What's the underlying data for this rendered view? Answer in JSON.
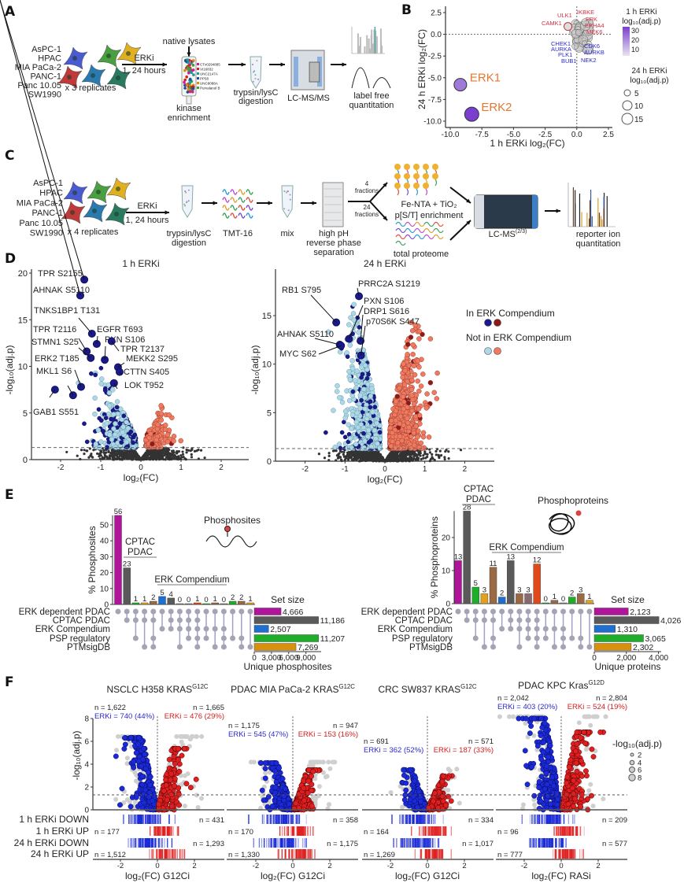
{
  "panels": [
    "A",
    "B",
    "C",
    "D",
    "E",
    "F"
  ],
  "panel_a": {
    "cell_lines": [
      "AsPC-1",
      "HPAC",
      "MIA PaCa-2",
      "PANC-1",
      "Panc 10.05",
      "SW1990"
    ],
    "replicates": "x 3 replicates",
    "treatment": "ERKi",
    "timepoints": "1, 24 hours",
    "native_lysates": "native lysates",
    "beads": [
      "CTx0294885",
      "VI16832",
      "UNC2147A",
      "PP58",
      "UNC8088A",
      "Purvalanol B"
    ],
    "bead_colors": [
      "#d0208f",
      "#d02020",
      "#1a9a9a",
      "#1a4aa0",
      "#e08a10",
      "#3aa03a"
    ],
    "enrichment": [
      "kinase",
      "enrichment"
    ],
    "digestion": [
      "trypsin/lysC",
      "digestion"
    ],
    "instrument": "LC-MS/MS",
    "quant": [
      "label free",
      "quantitation"
    ]
  },
  "panel_c": {
    "cell_lines": [
      "AsPC-1",
      "HPAC",
      "MIA PaCa-2",
      "PANC-1",
      "Panc 10.05",
      "SW1990"
    ],
    "replicates": "x 4 replicates",
    "treatment": "ERKi",
    "timepoints": "1, 24 hours",
    "digestion": [
      "trypsin/lysC",
      "digestion"
    ],
    "label": "TMT-16",
    "mix": "mix",
    "separation": [
      "high pH",
      "reverse phase",
      "separation"
    ],
    "fractions_a": [
      "4",
      "fractions"
    ],
    "fractions_b": [
      "24",
      "fractions"
    ],
    "enrichment": [
      "Fe-NTA + TiO₂",
      "p[S/T] enrichment"
    ],
    "total": "total proteome",
    "instrument": "LC-MS",
    "instrument_sup": "(2/3)",
    "quant": [
      "reporter ion",
      "quantitation"
    ]
  },
  "chart_data": [
    {
      "panel": "B",
      "type": "scatter",
      "xlabel": "1 h ERKi log₂(FC)",
      "ylabel": "24 h ERKi log₂(FC)",
      "xlim": [
        -10,
        2.5
      ],
      "ylim": [
        -10,
        2.5
      ],
      "xticks": [
        "-10.0",
        "-7.5",
        "-5.0",
        "-2.5",
        "0.0",
        "2.5"
      ],
      "yticks": [
        "2.5",
        "0.0",
        "-2.5",
        "-5.0",
        "-7.5",
        "-10.0"
      ],
      "points": [
        {
          "label": "ERK1",
          "x": -9.2,
          "y": -5.8
        },
        {
          "label": "ERK2",
          "x": -8.3,
          "y": -9.2
        }
      ],
      "labels_up": [
        "ULK1",
        "IKBKE",
        "FRK",
        "EPHA4",
        "CAMK1",
        "MEK6"
      ],
      "labels_down": [
        "CHEK1",
        "AURKA",
        "PLK1",
        "BUB1",
        "CDK6",
        "AURKB",
        "NEK2"
      ],
      "color_legend": {
        "title": [
          "1 h ERKi",
          "log₁₀(adj.p)"
        ],
        "ticks": [
          "30",
          "20",
          "10"
        ]
      },
      "size_legend": {
        "title": [
          "24 h ERKi",
          "log₁₀(adj.p)"
        ],
        "values": [
          "5",
          "10",
          "15"
        ]
      },
      "colors": {
        "label_highlight": "#e8772e",
        "up": "#d03040",
        "down": "#2a2ad0",
        "scale_high": "#7b3fcf",
        "scale_low": "#e0dce8"
      }
    },
    {
      "panel": "D",
      "type": "scatter",
      "title": "1 h ERKi",
      "xlabel": "log₂(FC)",
      "ylabel": "-log₁₀(adj.p)",
      "xlim": [
        -2.7,
        2.7
      ],
      "ylim": [
        0,
        20
      ],
      "xticks": [
        "-2",
        "-1",
        "0",
        "1",
        "2"
      ],
      "yticks": [
        "0",
        "5",
        "10",
        "15",
        "20"
      ],
      "threshold": 1.3,
      "labeled_points": [
        {
          "label": "TPR S2155",
          "x": -1.41,
          "y": 19.3
        },
        {
          "label": "AHNAK S5110",
          "x": -1.51,
          "y": 17.6
        },
        {
          "label": "TNKS1BP1 T131",
          "x": -1.22,
          "y": 13.5
        },
        {
          "label": "EGFR T693",
          "x": -1.1,
          "y": 12.4
        },
        {
          "label": "PXN S106",
          "x": -0.9,
          "y": 10.7
        },
        {
          "label": "TPR T2137",
          "x": -0.73,
          "y": 12.7
        },
        {
          "label": "TPR T2116",
          "x": -1.35,
          "y": 11.6
        },
        {
          "label": "STMN1 S25",
          "x": -1.25,
          "y": 10.9
        },
        {
          "label": "MEKK2 S295",
          "x": -0.57,
          "y": 9.9
        },
        {
          "label": "ERK2 T185",
          "x": -1.49,
          "y": 7.8
        },
        {
          "label": "CTTN S405",
          "x": -0.53,
          "y": 9.4
        },
        {
          "label": "MKL1 S6",
          "x": -1.69,
          "y": 6.9
        },
        {
          "label": "LOK T952",
          "x": -0.67,
          "y": 8.2
        },
        {
          "label": "GAB1 S551",
          "x": -2.14,
          "y": 7.5
        }
      ]
    },
    {
      "panel": "D",
      "type": "scatter",
      "title": "24 h ERKi",
      "xlabel": "log₂(FC)",
      "ylabel": "-log₁₀(adj.p)",
      "xlim": [
        -2.7,
        2.7
      ],
      "ylim": [
        0,
        19
      ],
      "xticks": [
        "-2",
        "-1",
        "0",
        "1",
        "2"
      ],
      "yticks": [
        "0",
        "5",
        "10",
        "15"
      ],
      "threshold": 1.3,
      "labeled_points": [
        {
          "label": "PRRC2A S1219",
          "x": -0.65,
          "y": 17.0
        },
        {
          "label": "RB1 S795",
          "x": -1.22,
          "y": 14.3
        },
        {
          "label": "PXN S106",
          "x": -0.9,
          "y": 12.6
        },
        {
          "label": "DRP1 S616",
          "x": -0.61,
          "y": 12.4
        },
        {
          "label": "p70S6K S447",
          "x": -0.6,
          "y": 10.9
        },
        {
          "label": "AHNAK S5110",
          "x": -1.13,
          "y": 12.0
        },
        {
          "label": "MYC S62",
          "x": -1.1,
          "y": 11.9
        }
      ],
      "legend": [
        {
          "label": "In ERK Compendium",
          "colors": [
            "#1a1a8c",
            "#8b1a1a"
          ]
        },
        {
          "label": "Not in ERK Compendium",
          "colors": [
            "#add8e6",
            "#f07a60"
          ]
        }
      ]
    },
    {
      "panel": "E",
      "type": "bar",
      "subtype": "upset",
      "ylabel": "% Phosphosites",
      "icon_label": "Phosphosites",
      "yticks": [
        "0",
        "10",
        "20",
        "30",
        "40",
        "50"
      ],
      "sets": [
        "ERK dependent PDAC",
        "CPTAC PDAC",
        "ERK Compendium",
        "PSP regulatory",
        "PTMsigDB"
      ],
      "set_sizes": [
        4666,
        11186,
        2507,
        11207,
        7269
      ],
      "set_size_labels": [
        "4,666",
        "11,186",
        "2,507",
        "11,207",
        "7,269"
      ],
      "set_colors": [
        "#b0149b",
        "#5a5a5a",
        "#1f6fd0",
        "#1fae2a",
        "#d89010"
      ],
      "set_size_title": "Set size",
      "set_size_axis": "Unique phosphosites",
      "set_size_ticks": [
        {
          "v": 0,
          "t": "0"
        },
        {
          "v": 3000,
          "t": "3,000"
        },
        {
          "v": 6000,
          "t": "6,000"
        },
        {
          "v": 9000,
          "t": "9,000"
        }
      ],
      "values": [
        56,
        23,
        1,
        1,
        2,
        5,
        4,
        0,
        0,
        1,
        0,
        1,
        0,
        2,
        2,
        1
      ],
      "bar_colors": [
        "#b0149b",
        "#5a5a5a",
        "#1fae2a",
        "#e0a020",
        "#9a6a45",
        "#1f6fd0",
        "#5a5a5a",
        "#888888",
        "#888888",
        "#e04a1a",
        "#1fae2a",
        "#9a6a45",
        "#888888",
        "#1fae2a",
        "#9a6a45",
        "#e0a020"
      ],
      "membership": [
        [
          0
        ],
        [
          0,
          1
        ],
        [
          0,
          1,
          3
        ],
        [
          0,
          1,
          4
        ],
        [
          0,
          1,
          3,
          4
        ],
        [
          0,
          2
        ],
        [
          0,
          1,
          2
        ],
        [
          0,
          1,
          2,
          4
        ],
        [
          0,
          1,
          2,
          3
        ],
        [
          0,
          1,
          2,
          3,
          4
        ],
        [
          0,
          2,
          3
        ],
        [
          0,
          2,
          4
        ],
        [
          0,
          2,
          3,
          4
        ],
        [
          0,
          3
        ],
        [
          0,
          3,
          4
        ],
        [
          0,
          4
        ]
      ],
      "annotations": [
        {
          "text": [
            "CPTAC",
            "PDAC"
          ]
        },
        {
          "text": [
            "ERK Compendium"
          ]
        }
      ]
    },
    {
      "panel": "E",
      "type": "bar",
      "subtype": "upset",
      "ylabel": "% Phosphoproteins",
      "icon_label": "Phosphoproteins",
      "yticks": [
        "0",
        "10",
        "20"
      ],
      "sets": [
        "ERK dependent PDAC",
        "CPTAC PDAC",
        "ERK Compendium",
        "PSP regulatory",
        "PTMsigDB"
      ],
      "set_sizes": [
        2123,
        4026,
        1310,
        3065,
        2302
      ],
      "set_size_labels": [
        "2,123",
        "4,026",
        "1,310",
        "3,065",
        "2,302"
      ],
      "set_colors": [
        "#b0149b",
        "#5a5a5a",
        "#1f6fd0",
        "#1fae2a",
        "#d89010"
      ],
      "set_size_title": "Set size",
      "set_size_axis": "Unique proteins",
      "set_size_ticks": [
        {
          "v": 0,
          "t": "0"
        },
        {
          "v": 2000,
          "t": "2,000"
        },
        {
          "v": 4000,
          "t": "4,000"
        }
      ],
      "values": [
        13,
        28,
        5,
        3,
        11,
        2,
        13,
        3,
        3,
        12,
        0,
        1,
        0,
        2,
        3,
        1
      ],
      "bar_colors": [
        "#b0149b",
        "#5a5a5a",
        "#1fae2a",
        "#e0a020",
        "#9a6a45",
        "#1f6fd0",
        "#5a5a5a",
        "#9a6a45",
        "#8a6a70",
        "#e04a1a",
        "#1fae2a",
        "#9a6a45",
        "#888888",
        "#1fae2a",
        "#9a6a45",
        "#e0a020"
      ],
      "membership": [
        [
          0
        ],
        [
          0,
          1
        ],
        [
          0,
          1,
          3
        ],
        [
          0,
          1,
          4
        ],
        [
          0,
          1,
          3,
          4
        ],
        [
          0,
          2
        ],
        [
          0,
          1,
          2
        ],
        [
          0,
          1,
          2,
          4
        ],
        [
          0,
          1,
          2,
          3
        ],
        [
          0,
          1,
          2,
          3,
          4
        ],
        [
          0,
          2,
          3
        ],
        [
          0,
          2,
          4
        ],
        [
          0,
          2,
          3,
          4
        ],
        [
          0,
          3
        ],
        [
          0,
          3,
          4
        ],
        [
          0,
          4
        ]
      ],
      "annotations": [
        {
          "text": [
            "CPTAC",
            "PDAC"
          ]
        },
        {
          "text": [
            "ERK Compendium"
          ]
        }
      ]
    },
    {
      "panel": "F",
      "type": "scatter",
      "title": "NSCLC H358 KRAS",
      "title_sup": "G12C",
      "xlabel": "log₂(FC) G12Ci",
      "ylabel": "-log₁₀(adj.p)",
      "xticks": [
        "-2",
        "0",
        "2"
      ],
      "yticks": [
        "0",
        "2",
        "4",
        "6",
        "8"
      ],
      "ylim": [
        0,
        8.5
      ],
      "down": {
        "n": "n = 1,622",
        "erki": "ERKi = 740 (44%)"
      },
      "up": {
        "n": "n = 1,665",
        "erki": "ERKi = 476 (29%)"
      },
      "rug_rows": [
        "1 h ERKi DOWN",
        "1 h ERKi UP",
        "24 h ERKi DOWN",
        "24 h ERKi UP"
      ],
      "rug_n": [
        "n = 431",
        "n = 177",
        "n = 1,293",
        "n = 1,512"
      ],
      "size_legend": {
        "title": "-log₁₀(adj.p)",
        "values": [
          "2",
          "4",
          "6",
          "8"
        ]
      }
    },
    {
      "panel": "F",
      "type": "scatter",
      "title": "PDAC MIA PaCa-2 KRAS",
      "title_sup": "G12C",
      "xlabel": "log₂(FC) G12Ci",
      "xticks": [
        "-2",
        "0",
        "2"
      ],
      "down": {
        "n": "n = 1,175",
        "erki": "ERKi = 545 (47%)"
      },
      "up": {
        "n": "n = 947",
        "erki": "ERKi = 153 (16%)"
      },
      "rug_n": [
        "n = 358",
        "n = 170",
        "n = 1,175",
        "n = 1,330"
      ]
    },
    {
      "panel": "F",
      "type": "scatter",
      "title": "CRC SW837 KRAS",
      "title_sup": "G12C",
      "xlabel": "log₂(FC) G12Ci",
      "xticks": [
        "-2",
        "0",
        "2"
      ],
      "down": {
        "n": "n = 691",
        "erki": "ERKi = 362 (52%)"
      },
      "up": {
        "n": "n = 571",
        "erki": "ERKi = 187 (33%)"
      },
      "rug_n": [
        "n = 334",
        "n = 164",
        "n = 1,017",
        "n = 1,269"
      ]
    },
    {
      "panel": "F",
      "type": "scatter",
      "title": "PDAC KPC Kras",
      "title_sup": "G12D",
      "xlabel": "log₂(FC) RASi",
      "xticks": [
        "-2",
        "0",
        "2"
      ],
      "down": {
        "n": "n = 2,042",
        "erki": "ERKi = 403 (20%)"
      },
      "up": {
        "n": "n = 2,804",
        "erki": "ERKi = 524 (19%)"
      },
      "rug_n": [
        "n = 209",
        "n = 96",
        "n = 577",
        "n = 777"
      ]
    }
  ]
}
